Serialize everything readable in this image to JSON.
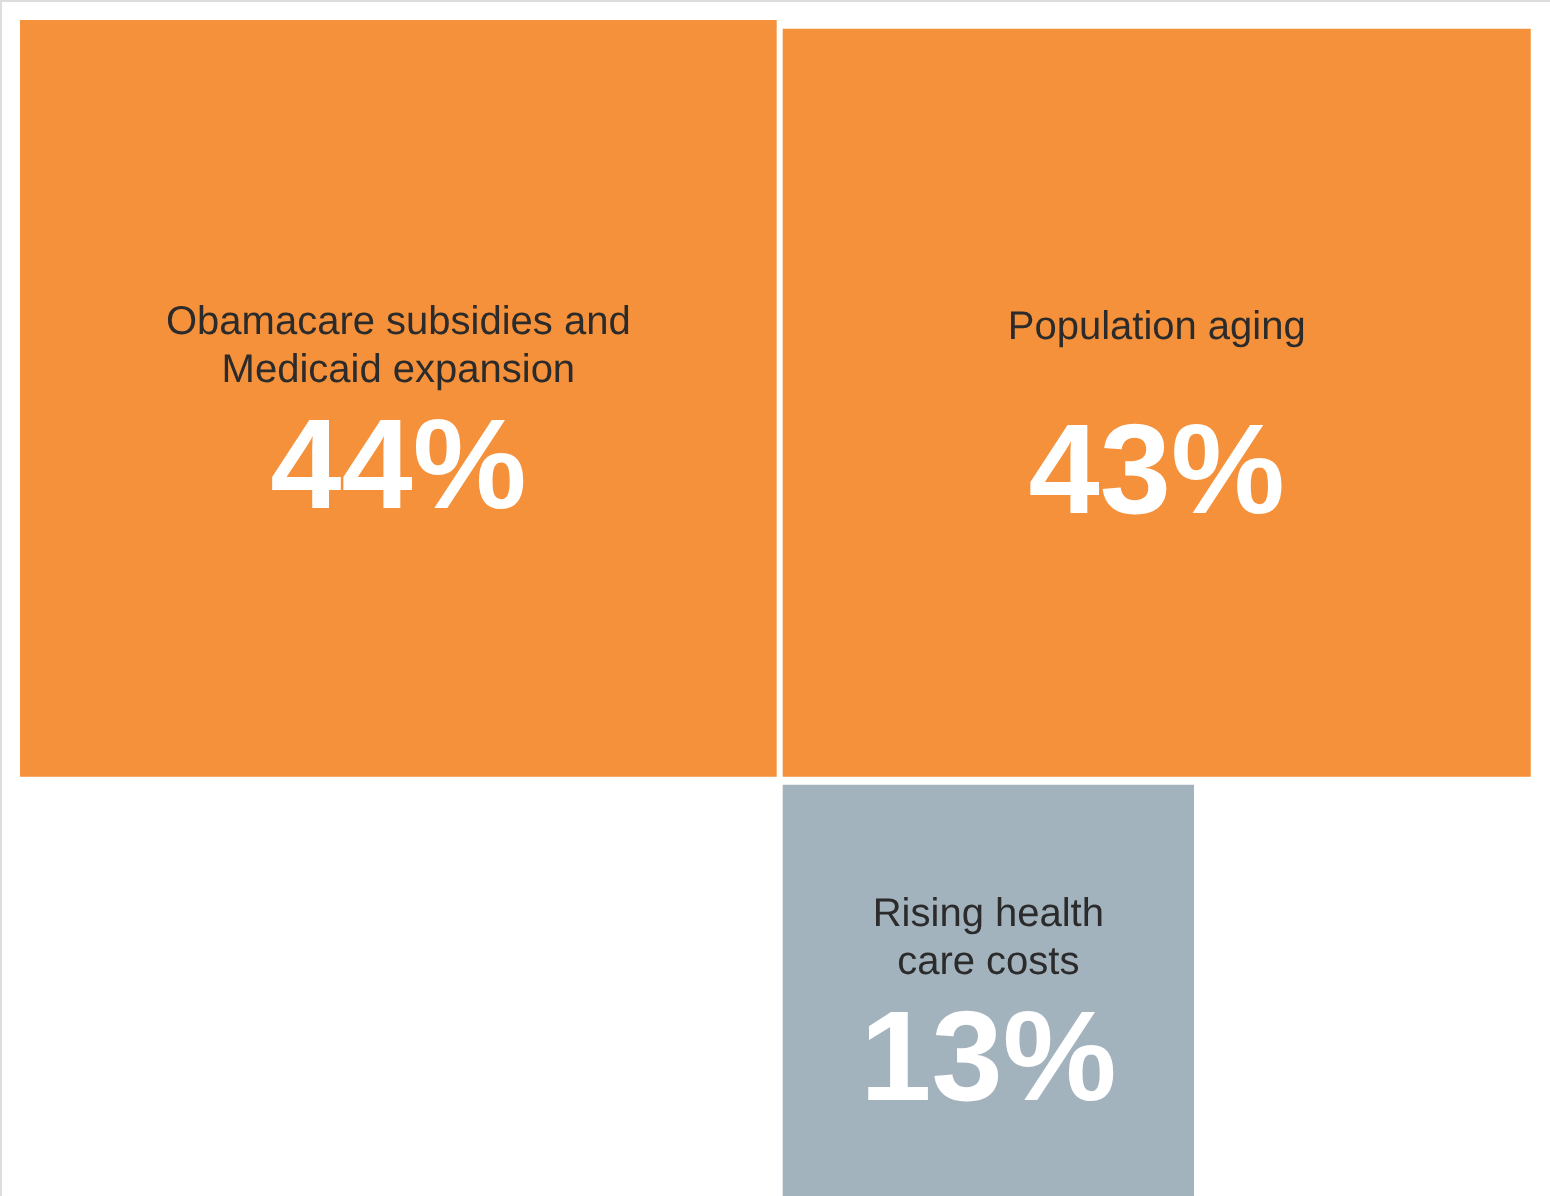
{
  "chart_data": {
    "type": "other",
    "categories": [
      "Obamacare subsidies and Medicaid expansion",
      "Population aging",
      "Rising health care costs"
    ],
    "values": [
      44,
      43,
      13
    ],
    "value_labels": [
      "44%",
      "43%",
      "13%"
    ],
    "colors": [
      "#f5913a",
      "#f5913a",
      "#a3b3be"
    ]
  }
}
